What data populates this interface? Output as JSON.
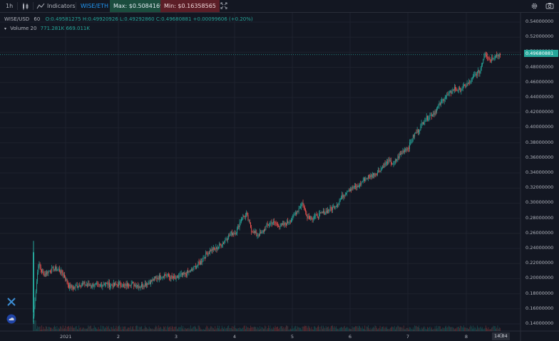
{
  "toolbar": {
    "interval": "1h",
    "indicators_label": "Indicators",
    "compare_pair": "WISE/ETH",
    "max_label": "Max: $0.5084169",
    "min_label": "Min: $0.16358565"
  },
  "legend": {
    "symbol": "WISE/USD",
    "interval": "60",
    "open": "O:0.49581275",
    "high": "H:0.49920926",
    "low": "L:0.49292860",
    "close": "C:0.49680881",
    "change": "+0.00099606 (+0.20%)",
    "volume_label": "Volume 20",
    "volume_value1": "771.281K",
    "volume_value2": "669.011K"
  },
  "price_axis": {
    "ticks": [
      "0.54000000",
      "0.52000000",
      "0.50000000",
      "0.48000000",
      "0.46000000",
      "0.44000000",
      "0.42000000",
      "0.40000000",
      "0.38000000",
      "0.36000000",
      "0.34000000",
      "0.32000000",
      "0.30000000",
      "0.28000000",
      "0.26000000",
      "0.24000000",
      "0.22000000",
      "0.20000000",
      "0.18000000",
      "0.16000000",
      "0.14000000"
    ],
    "current_price": "0.49680881"
  },
  "time_axis": {
    "ticks": [
      "2021",
      "2",
      "3",
      "4",
      "5",
      "6",
      "7",
      "8"
    ],
    "current_time": "14:04"
  },
  "colors": {
    "up": "#26a69a",
    "down": "#ef5350",
    "background": "#131722"
  },
  "chart_data": {
    "type": "candlestick",
    "ylim": [
      0.13,
      0.55
    ],
    "title": "",
    "series": [
      {
        "name": "WISE/USD",
        "close_path": [
          0.15,
          0.22,
          0.205,
          0.21,
          0.213,
          0.212,
          0.205,
          0.19,
          0.188,
          0.192,
          0.193,
          0.191,
          0.192,
          0.19,
          0.194,
          0.192,
          0.191,
          0.193,
          0.19,
          0.194,
          0.192,
          0.19,
          0.193,
          0.196,
          0.2,
          0.203,
          0.205,
          0.202,
          0.2,
          0.204,
          0.206,
          0.21,
          0.216,
          0.222,
          0.232,
          0.238,
          0.24,
          0.245,
          0.253,
          0.26,
          0.262,
          0.28,
          0.285,
          0.265,
          0.258,
          0.26,
          0.27,
          0.275,
          0.272,
          0.27,
          0.274,
          0.28,
          0.29,
          0.3,
          0.283,
          0.281,
          0.283,
          0.287,
          0.29,
          0.294,
          0.3,
          0.31,
          0.318,
          0.32,
          0.322,
          0.33,
          0.335,
          0.338,
          0.342,
          0.35,
          0.355,
          0.352,
          0.362,
          0.37,
          0.375,
          0.39,
          0.398,
          0.41,
          0.415,
          0.42,
          0.43,
          0.44,
          0.445,
          0.452,
          0.45,
          0.455,
          0.46,
          0.47,
          0.475,
          0.5,
          0.49,
          0.496,
          0.497
        ]
      }
    ]
  }
}
